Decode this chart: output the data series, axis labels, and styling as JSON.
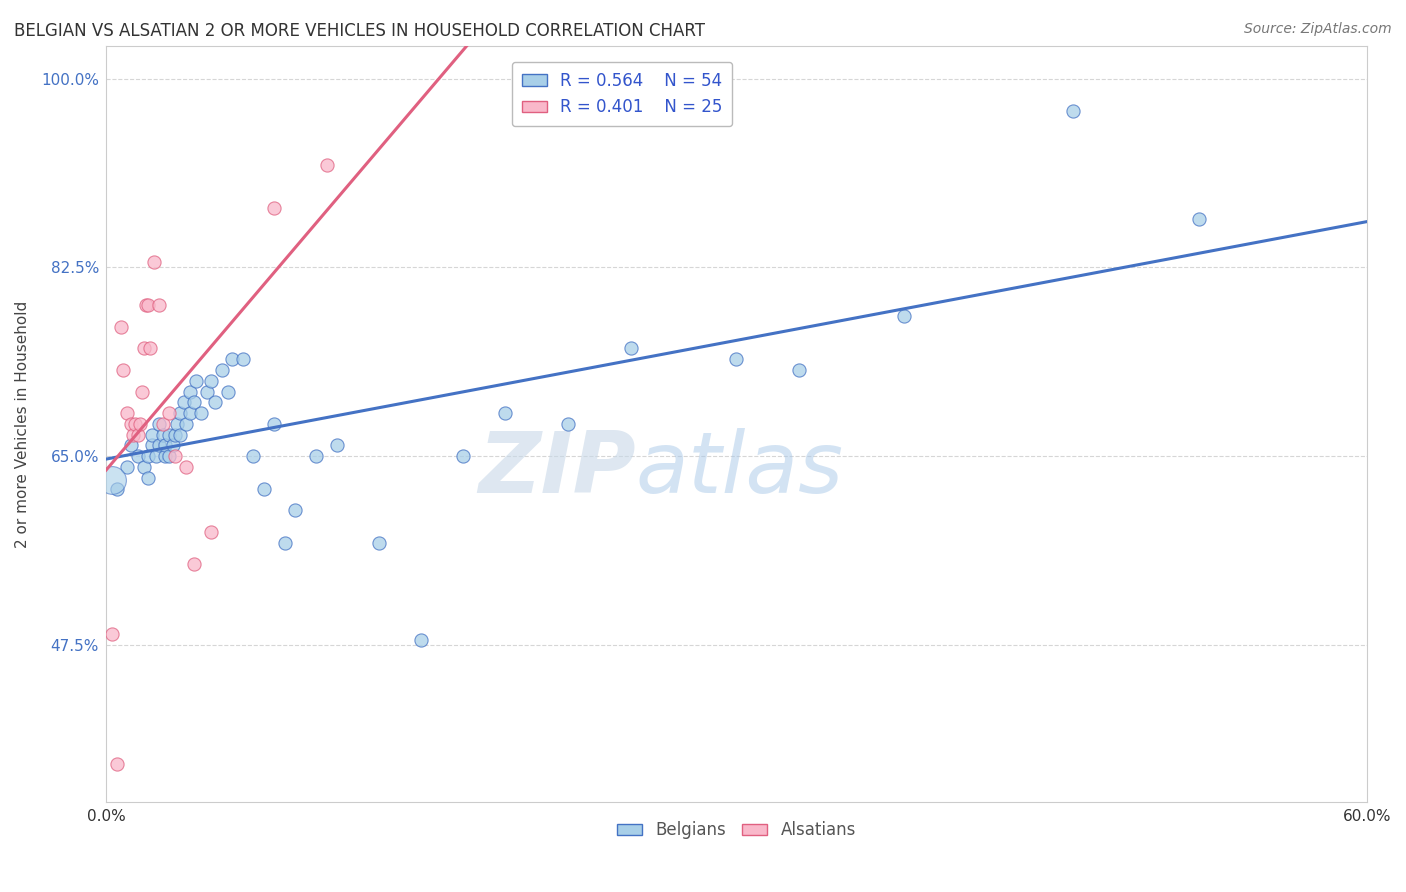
{
  "title": "BELGIAN VS ALSATIAN 2 OR MORE VEHICLES IN HOUSEHOLD CORRELATION CHART",
  "source": "Source: ZipAtlas.com",
  "ylabel": "2 or more Vehicles in Household",
  "xmin": 0.0,
  "xmax": 0.6,
  "ymin": 0.33,
  "ymax": 1.03,
  "yticks": [
    0.475,
    0.65,
    0.825,
    1.0
  ],
  "ytick_labels": [
    "47.5%",
    "65.0%",
    "82.5%",
    "100.0%"
  ],
  "xticks": [
    0.0,
    0.1,
    0.2,
    0.3,
    0.4,
    0.5,
    0.6
  ],
  "xtick_labels": [
    "0.0%",
    "",
    "",
    "",
    "",
    "",
    "60.0%"
  ],
  "belgian_R": 0.564,
  "belgian_N": 54,
  "alsatian_R": 0.401,
  "alsatian_N": 25,
  "belgian_color": "#a8cfe8",
  "alsatian_color": "#f9b8ca",
  "belgian_line_color": "#4472c4",
  "alsatian_line_color": "#e06080",
  "watermark_zip": "ZIP",
  "watermark_atlas": "atlas",
  "legend_label_belgian": "Belgians",
  "legend_label_alsatian": "Alsatians",
  "belgian_x": [
    0.005,
    0.01,
    0.012,
    0.015,
    0.018,
    0.02,
    0.02,
    0.022,
    0.022,
    0.024,
    0.025,
    0.025,
    0.027,
    0.028,
    0.028,
    0.03,
    0.03,
    0.032,
    0.033,
    0.034,
    0.035,
    0.035,
    0.037,
    0.038,
    0.04,
    0.04,
    0.042,
    0.043,
    0.045,
    0.048,
    0.05,
    0.052,
    0.055,
    0.058,
    0.06,
    0.065,
    0.07,
    0.075,
    0.08,
    0.085,
    0.09,
    0.1,
    0.11,
    0.13,
    0.15,
    0.17,
    0.19,
    0.22,
    0.25,
    0.3,
    0.33,
    0.38,
    0.46,
    0.52
  ],
  "belgian_y": [
    0.62,
    0.64,
    0.66,
    0.65,
    0.64,
    0.63,
    0.65,
    0.66,
    0.67,
    0.65,
    0.66,
    0.68,
    0.67,
    0.65,
    0.66,
    0.65,
    0.67,
    0.66,
    0.67,
    0.68,
    0.67,
    0.69,
    0.7,
    0.68,
    0.69,
    0.71,
    0.7,
    0.72,
    0.69,
    0.71,
    0.72,
    0.7,
    0.73,
    0.71,
    0.74,
    0.74,
    0.65,
    0.62,
    0.68,
    0.57,
    0.6,
    0.65,
    0.66,
    0.57,
    0.48,
    0.65,
    0.69,
    0.68,
    0.75,
    0.74,
    0.73,
    0.78,
    0.97,
    0.87
  ],
  "belgian_sizes": [
    40,
    40,
    40,
    40,
    40,
    40,
    40,
    40,
    40,
    40,
    40,
    40,
    40,
    40,
    40,
    40,
    40,
    40,
    40,
    40,
    40,
    40,
    40,
    40,
    40,
    40,
    40,
    40,
    40,
    40,
    40,
    40,
    40,
    40,
    40,
    40,
    40,
    40,
    40,
    40,
    40,
    40,
    40,
    40,
    40,
    40,
    40,
    40,
    40,
    40,
    40,
    40,
    40,
    40
  ],
  "belgian_x_large": [
    0.003
  ],
  "belgian_y_large": [
    0.628
  ],
  "alsatian_x": [
    0.003,
    0.005,
    0.007,
    0.008,
    0.01,
    0.012,
    0.013,
    0.014,
    0.015,
    0.016,
    0.017,
    0.018,
    0.019,
    0.02,
    0.021,
    0.023,
    0.025,
    0.027,
    0.03,
    0.033,
    0.038,
    0.042,
    0.05,
    0.08,
    0.105
  ],
  "alsatian_y": [
    0.485,
    0.365,
    0.77,
    0.73,
    0.69,
    0.68,
    0.67,
    0.68,
    0.67,
    0.68,
    0.71,
    0.75,
    0.79,
    0.79,
    0.75,
    0.83,
    0.79,
    0.68,
    0.69,
    0.65,
    0.64,
    0.55,
    0.58,
    0.88,
    0.92
  ],
  "alsatian_line_xmax": 0.32
}
